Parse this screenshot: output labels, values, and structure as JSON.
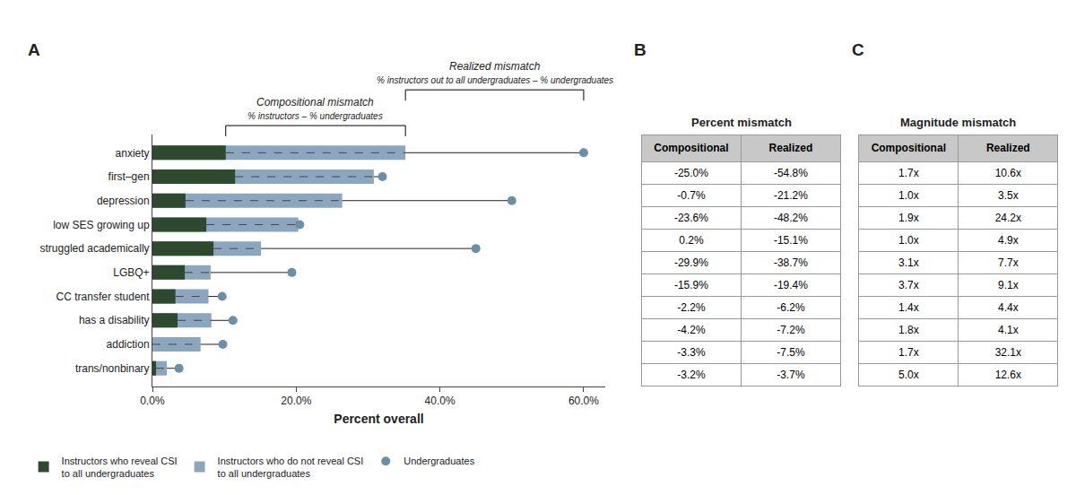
{
  "chart_data": [
    {
      "type": "bar",
      "orientation": "horizontal",
      "categories": [
        "anxiety",
        "first–gen",
        "depression",
        "low SES growing up",
        "struggled academically",
        "LGBQ+",
        "CC transfer student",
        "has a disability",
        "addiction",
        "trans/nonbinary"
      ],
      "series": [
        {
          "name": "Instructors who reveal CSI\nto all undergraduates",
          "color": "#2d4a2e",
          "values": [
            10.2,
            11.5,
            4.6,
            7.5,
            8.5,
            4.5,
            3.2,
            3.5,
            0.0,
            0.5
          ]
        },
        {
          "name": "Instructors who do not reveal CSI\nto all undergraduates",
          "color": "#8ba7bf",
          "values": [
            35.2,
            30.8,
            26.4,
            20.3,
            15.1,
            8.1,
            7.8,
            8.2,
            6.7,
            2.0
          ]
        },
        {
          "name": "Undergraduates",
          "type": "scatter",
          "marker": "circle",
          "color": "#6b8fa8",
          "values": [
            60.0,
            32.0,
            50.0,
            20.5,
            45.0,
            19.4,
            9.7,
            11.2,
            9.8,
            3.7
          ]
        }
      ],
      "xlim": [
        0,
        63
      ],
      "xticks": [
        {
          "value": 0,
          "label": "0.0%"
        },
        {
          "value": 20,
          "label": "20.0%"
        },
        {
          "value": 40,
          "label": "40.0%"
        },
        {
          "value": 60,
          "label": "60.0%"
        }
      ],
      "xlabel": "Percent overall",
      "grid": false,
      "legend": "below",
      "annotations": [
        {
          "text": "A"
        },
        {
          "text": "Compositional mismatch",
          "subtext": "% instructors – % undergraduates",
          "x": [
            10.2,
            35.2
          ]
        },
        {
          "text": "Realized mismatch",
          "subtext": "% instructors out to all undergraduates – % undergraduates",
          "x": [
            35.2,
            60.0
          ]
        }
      ]
    },
    {
      "type": "table",
      "title": "Percent mismatch",
      "columns": [
        "Compositional",
        "Realized"
      ],
      "rows": [
        [
          "-25.0%",
          "-54.8%"
        ],
        [
          "-0.7%",
          "-21.2%"
        ],
        [
          "-23.6%",
          "-48.2%"
        ],
        [
          "0.2%",
          "-15.1%"
        ],
        [
          "-29.9%",
          "-38.7%"
        ],
        [
          "-15.9%",
          "-19.4%"
        ],
        [
          "-2.2%",
          "-6.2%"
        ],
        [
          "-4.2%",
          "-7.2%"
        ],
        [
          "-3.3%",
          "-7.5%"
        ],
        [
          "-3.2%",
          "-3.7%"
        ]
      ],
      "annotations": [
        {
          "text": "B"
        }
      ]
    },
    {
      "type": "table",
      "title": "Magnitude mismatch",
      "columns": [
        "Compositional",
        "Realized"
      ],
      "rows": [
        [
          "1.7x",
          "10.6x"
        ],
        [
          "1.0x",
          "3.5x"
        ],
        [
          "1.9x",
          "24.2x"
        ],
        [
          "1.0x",
          "4.9x"
        ],
        [
          "3.1x",
          "7.7x"
        ],
        [
          "3.7x",
          "9.1x"
        ],
        [
          "1.4x",
          "4.4x"
        ],
        [
          "1.8x",
          "4.1x"
        ],
        [
          "1.7x",
          "32.1x"
        ],
        [
          "5.0x",
          "12.6x"
        ]
      ],
      "annotations": [
        {
          "text": "C"
        }
      ]
    }
  ]
}
